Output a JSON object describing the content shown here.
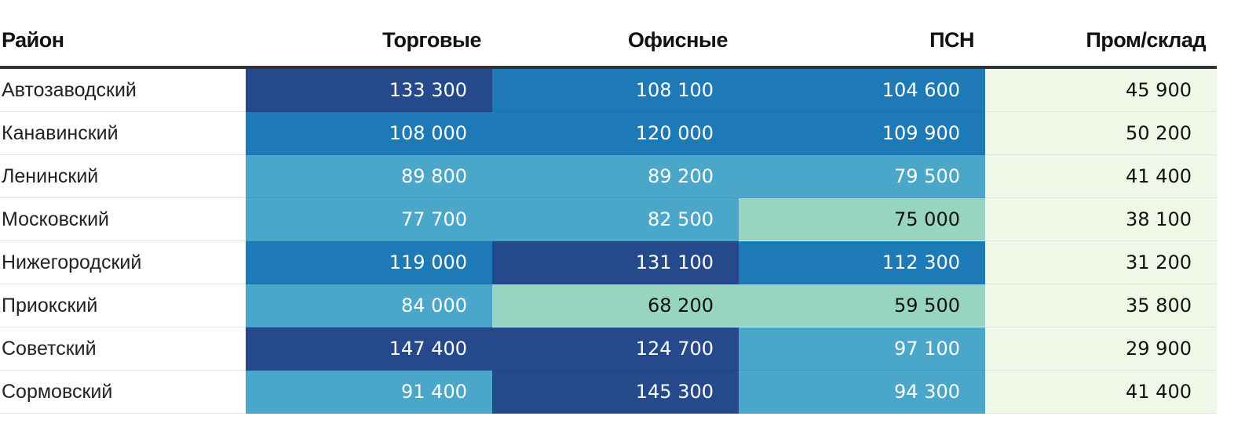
{
  "chart_data": {
    "type": "table",
    "columns": [
      "Район",
      "Торговые",
      "Офисные",
      "ПСН",
      "Пром/склад"
    ],
    "rows": [
      {
        "name": "Автозаводский",
        "values": [
          133300,
          108100,
          104600,
          45900
        ],
        "labels": [
          "133 300",
          "108 100",
          "104 600",
          "45 900"
        ]
      },
      {
        "name": "Канавинский",
        "values": [
          108000,
          120000,
          109900,
          50200
        ],
        "labels": [
          "108 000",
          "120 000",
          "109 900",
          "50 200"
        ]
      },
      {
        "name": "Ленинский",
        "values": [
          89800,
          89200,
          79500,
          41400
        ],
        "labels": [
          "89 800",
          "89 200",
          "79 500",
          "41 400"
        ]
      },
      {
        "name": "Московский",
        "values": [
          77700,
          82500,
          75000,
          38100
        ],
        "labels": [
          "77 700",
          "82 500",
          "75 000",
          "38 100"
        ]
      },
      {
        "name": "Нижегородский",
        "values": [
          119000,
          131100,
          112300,
          31200
        ],
        "labels": [
          "119 000",
          "131 100",
          "112 300",
          "31 200"
        ]
      },
      {
        "name": "Приокский",
        "values": [
          84000,
          68200,
          59500,
          35800
        ],
        "labels": [
          "84 000",
          "68 200",
          "59 500",
          "35 800"
        ]
      },
      {
        "name": "Советский",
        "values": [
          147400,
          124700,
          97100,
          29900
        ],
        "labels": [
          "147 400",
          "124 700",
          "97 100",
          "29 900"
        ]
      },
      {
        "name": "Сормовский",
        "values": [
          91400,
          145300,
          94300,
          41400
        ],
        "labels": [
          "91 400",
          "145 300",
          "94 300",
          "41 400"
        ]
      }
    ],
    "color_scale": [
      {
        "min": 120001,
        "color": "#25498b",
        "text": "#ffffff"
      },
      {
        "min": 100001,
        "color": "#1e7ab7",
        "text": "#ffffff"
      },
      {
        "min": 75001,
        "color": "#4aa7ca",
        "text": "#ffffff"
      },
      {
        "min": 50201,
        "color": "#98d5c1",
        "text": "#111111"
      },
      {
        "min": 0,
        "color": "#eff8e7",
        "text": "#111111"
      }
    ]
  }
}
